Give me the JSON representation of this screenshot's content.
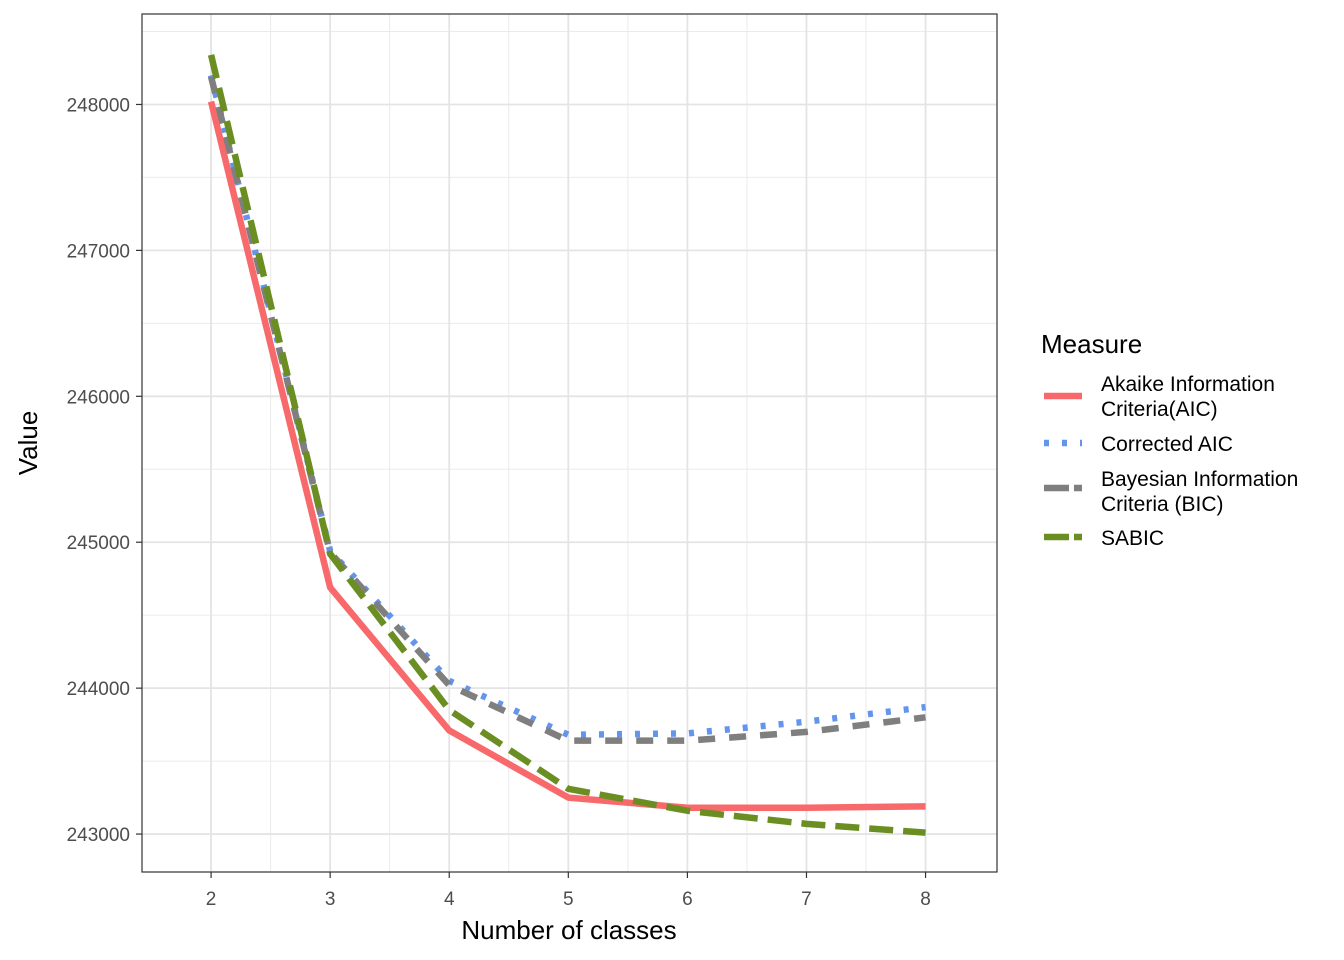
{
  "chart_data": {
    "type": "line",
    "xlabel": "Number of classes",
    "ylabel": "Value",
    "x": [
      2,
      3,
      4,
      5,
      6,
      7,
      8
    ],
    "xlim": [
      1.42,
      8.6
    ],
    "ylim": [
      242740,
      248620
    ],
    "x_ticks": [
      "2",
      "3",
      "4",
      "5",
      "6",
      "7",
      "8"
    ],
    "y_ticks": [
      "243000",
      "244000",
      "245000",
      "246000",
      "247000",
      "248000"
    ],
    "grid": true,
    "legend": {
      "title": "Measure",
      "placement": "right"
    },
    "series": [
      {
        "label_lines": [
          "Akaike Information",
          "Criteria(AIC)"
        ],
        "color": "#F8696B",
        "style": "solid",
        "values": [
          248020,
          244690,
          243710,
          243250,
          243180,
          243180,
          243190
        ]
      },
      {
        "label_lines": [
          "Corrected AIC"
        ],
        "color": "#6495ED",
        "style": "dotted",
        "values": [
          248200,
          244940,
          244050,
          243680,
          243690,
          243770,
          243870
        ]
      },
      {
        "label_lines": [
          "Bayesian Information",
          "Criteria (BIC)"
        ],
        "color": "#7F7F7F",
        "style": "dashed",
        "values": [
          248190,
          244930,
          244020,
          243640,
          243640,
          243700,
          243800
        ]
      },
      {
        "label_lines": [
          "SABIC"
        ],
        "color": "#6B8E23",
        "style": "longdash",
        "values": [
          248340,
          244920,
          243850,
          243310,
          243160,
          243070,
          243010
        ]
      }
    ]
  }
}
